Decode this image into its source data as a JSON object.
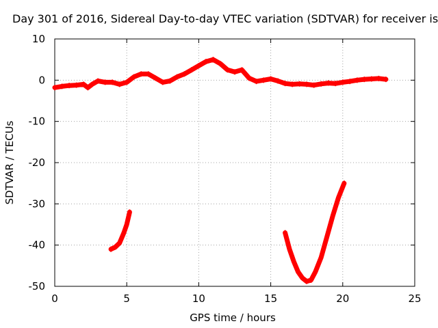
{
  "chart_data": {
    "type": "scatter",
    "title": "Day 301 of 2016, Sidereal Day-to-day VTEC variation (SDTVAR) for receiver is",
    "xlabel": "GPS time / hours",
    "ylabel": "SDTVAR / TECUs",
    "xlim": [
      0,
      25
    ],
    "ylim": [
      -50,
      10
    ],
    "x_ticks": [
      0,
      5,
      10,
      15,
      20,
      25
    ],
    "y_ticks": [
      -50,
      -40,
      -30,
      -20,
      -10,
      0,
      10
    ],
    "grid": true,
    "grid_style": "dotted",
    "legend": "none",
    "series_color": "#ff0000",
    "series": [
      {
        "x": [
          0.0,
          0.5,
          1.0,
          1.5,
          2.0,
          2.3,
          2.6,
          3.0,
          3.5,
          4.0,
          4.5,
          5.0,
          5.5,
          6.0,
          6.5,
          7.0,
          7.5,
          8.0,
          8.5,
          9.0,
          9.5,
          10.0,
          10.5,
          11.0,
          11.5,
          12.0,
          12.5,
          13.0,
          13.5,
          14.0,
          14.5,
          15.0,
          15.5,
          16.0,
          16.5,
          17.0,
          17.5,
          18.0,
          18.5,
          19.0,
          19.5,
          20.0,
          20.5,
          21.0,
          21.5,
          22.0,
          22.5,
          23.0
        ],
        "y": [
          -1.8,
          -1.5,
          -1.3,
          -1.2,
          -1.0,
          -1.8,
          -1.0,
          -0.2,
          -0.5,
          -0.5,
          -1.0,
          -0.5,
          0.8,
          1.5,
          1.5,
          0.5,
          -0.5,
          -0.2,
          0.8,
          1.5,
          2.5,
          3.5,
          4.5,
          5.0,
          4.0,
          2.5,
          2.0,
          2.5,
          0.5,
          -0.3,
          0.0,
          0.3,
          -0.2,
          -0.8,
          -1.0,
          -0.9,
          -1.0,
          -1.2,
          -0.9,
          -0.7,
          -0.8,
          -0.5,
          -0.3,
          0.0,
          0.2,
          0.3,
          0.4,
          0.2
        ]
      },
      {
        "x": [
          3.9,
          4.2,
          4.5,
          4.8,
          5.0,
          5.2
        ],
        "y": [
          -41.0,
          -40.5,
          -39.5,
          -37.0,
          -35.0,
          -32.0
        ]
      },
      {
        "x": [
          16.0,
          16.3,
          16.6,
          16.9,
          17.2,
          17.5,
          17.8,
          18.1,
          18.5,
          18.9,
          19.3,
          19.7,
          20.1
        ],
        "y": [
          -37.0,
          -41.0,
          -44.0,
          -46.5,
          -48.0,
          -48.8,
          -48.5,
          -46.5,
          -43.0,
          -38.0,
          -33.0,
          -28.5,
          -25.0
        ]
      }
    ]
  }
}
